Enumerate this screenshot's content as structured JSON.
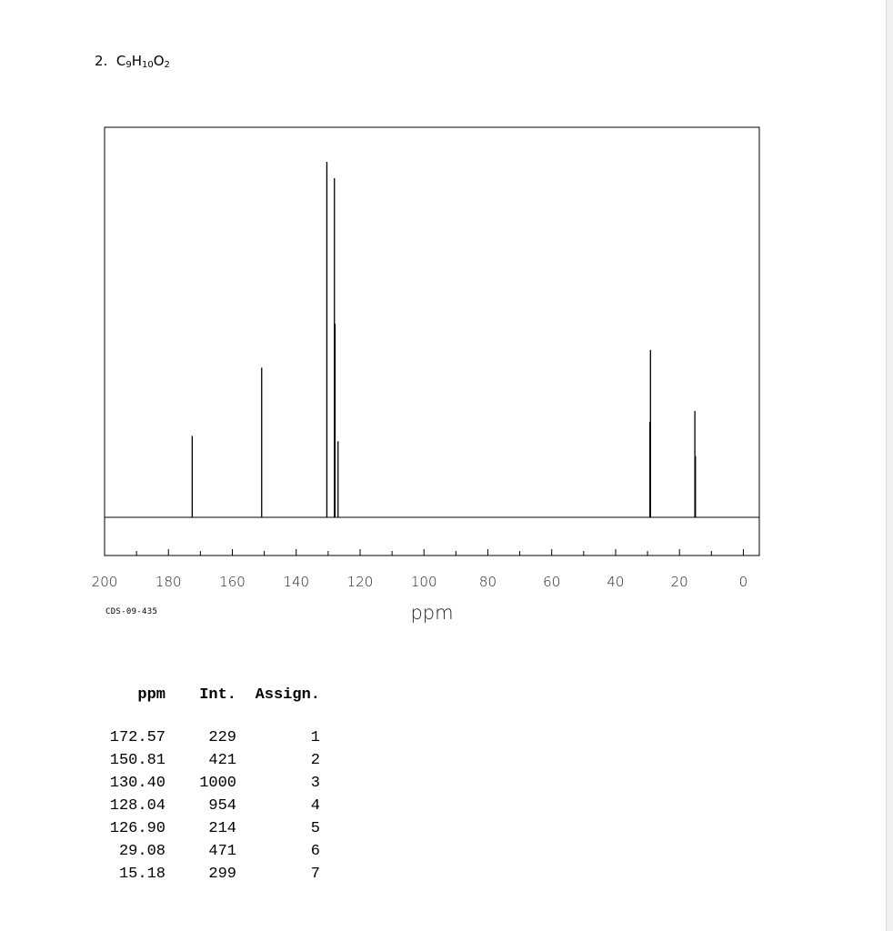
{
  "problem": {
    "number": "2.",
    "formula_parts": [
      {
        "t": "C",
        "sub": false
      },
      {
        "t": "9",
        "sub": true
      },
      {
        "t": "H",
        "sub": false
      },
      {
        "t": "10",
        "sub": true
      },
      {
        "t": "O",
        "sub": false
      },
      {
        "t": "2",
        "sub": true
      }
    ]
  },
  "chart_data": {
    "type": "line",
    "xlabel": "ppm",
    "x_reversed": true,
    "xlim": [
      200,
      -5
    ],
    "xticks": [
      200,
      180,
      160,
      140,
      120,
      100,
      80,
      60,
      40,
      20,
      0
    ],
    "xticks_minor_step": 10,
    "grid": false,
    "code": "CDS-09-435",
    "peaks": [
      {
        "ppm": 172.57,
        "intensity": 229
      },
      {
        "ppm": 150.81,
        "intensity": 421
      },
      {
        "ppm": 130.4,
        "intensity": 1000
      },
      {
        "ppm": 128.04,
        "intensity": 954
      },
      {
        "ppm": 127.85,
        "intensity": 544
      },
      {
        "ppm": 126.9,
        "intensity": 214
      },
      {
        "ppm": 29.08,
        "intensity": 471
      },
      {
        "ppm": 29.25,
        "intensity": 268
      },
      {
        "ppm": 15.18,
        "intensity": 299
      },
      {
        "ppm": 15.0,
        "intensity": 172
      }
    ]
  },
  "table": {
    "headers": [
      "ppm",
      "Int.",
      "Assign."
    ],
    "rows": [
      [
        "172.57",
        "229",
        "1"
      ],
      [
        "150.81",
        "421",
        "2"
      ],
      [
        "130.40",
        "1000",
        "3"
      ],
      [
        "128.04",
        "954",
        "4"
      ],
      [
        "126.90",
        "214",
        "5"
      ],
      [
        "29.08",
        "471",
        "6"
      ],
      [
        "15.18",
        "299",
        "7"
      ]
    ]
  }
}
